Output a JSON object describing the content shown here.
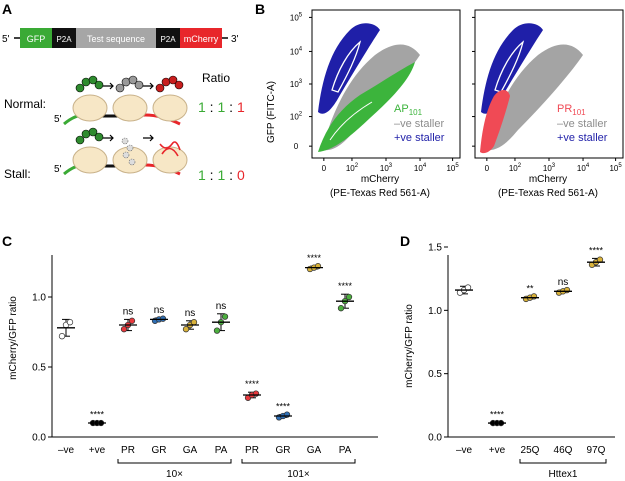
{
  "panel_labels": {
    "a": "A",
    "b": "B",
    "c": "C",
    "d": "D"
  },
  "panel_a": {
    "construct": {
      "five_prime": "5'",
      "three_prime": "3'",
      "gfp": "GFP",
      "p2a_left": "P2A",
      "test": "Test sequence",
      "p2a_right": "P2A",
      "mcherry": "mCherry"
    },
    "ratio_header": "Ratio",
    "normal": {
      "label": "Normal:",
      "five": "5'",
      "r1": "1",
      "sep1": " : ",
      "r2": "1",
      "sep2": " : ",
      "r3": "1"
    },
    "stall": {
      "label": "Stall:",
      "five": "5'",
      "r1": "1",
      "sep1": " : ",
      "r2": "1",
      "sep2": " : ",
      "r3": "0"
    },
    "colors": {
      "gfp": "#3aaa35",
      "p2a": "#111111",
      "test": "#a6a6a6",
      "mcherry": "#e8262b",
      "ribosome": "#f7e7c6"
    }
  },
  "panel_b": {
    "ylabel": "GFP (FITC-A)",
    "xlabel_line1": "mCherry",
    "xlabel_line2": "(PE-Texas Red 561-A)",
    "x_ticks": [
      "0",
      "10",
      "10",
      "10",
      "10"
    ],
    "x_exps": [
      "",
      "2",
      "3",
      "4",
      "5"
    ],
    "y_ticks": [
      "0",
      "10",
      "10",
      "10",
      "10"
    ],
    "y_exps": [
      "",
      "2",
      "3",
      "4",
      "5"
    ],
    "left_legend": {
      "main": "AP",
      "sub": "101",
      "neg": "–ve staller",
      "pos": "+ve staller"
    },
    "right_legend": {
      "main": "PR",
      "sub": "101",
      "neg": "–ve staller",
      "pos": "+ve staller"
    },
    "colors": {
      "pos": "#1f1fa8",
      "neg": "#8c8c8c",
      "ap": "#3cb43c",
      "pr": "#f04a55"
    }
  },
  "chart_data": [
    {
      "type": "scatter",
      "title": "",
      "ylabel": "mCherry/GFP ratio",
      "ylim": [
        0,
        1.3
      ],
      "y_ticks": [
        "0.0",
        "0.5",
        "1.0"
      ],
      "categories": [
        "–ve",
        "+ve",
        "PR",
        "GR",
        "GA",
        "PA",
        "PR",
        "GR",
        "GA",
        "PA"
      ],
      "groups": [
        {
          "label": "10×",
          "categories": [
            "PR",
            "GR",
            "GA",
            "PA"
          ]
        },
        {
          "label": "101×",
          "categories": [
            "PR",
            "GR",
            "GA",
            "PA"
          ]
        }
      ],
      "series": [
        {
          "name": "–ve",
          "mean": 0.78,
          "sd": 0.06,
          "points": [
            0.72,
            0.8,
            0.82
          ],
          "color": "#ffffff",
          "sig": ""
        },
        {
          "name": "+ve",
          "mean": 0.1,
          "sd": 0.005,
          "points": [
            0.1,
            0.1,
            0.1
          ],
          "color": "#000000",
          "sig": "****"
        },
        {
          "name": "PR 10×",
          "mean": 0.8,
          "sd": 0.04,
          "points": [
            0.77,
            0.8,
            0.83
          ],
          "color": "#e8383d",
          "sig": "ns"
        },
        {
          "name": "GR 10×",
          "mean": 0.84,
          "sd": 0.01,
          "points": [
            0.83,
            0.84,
            0.845
          ],
          "color": "#2f6fb5",
          "sig": "ns"
        },
        {
          "name": "GA 10×",
          "mean": 0.8,
          "sd": 0.03,
          "points": [
            0.77,
            0.8,
            0.82
          ],
          "color": "#d9b23a",
          "sig": "ns"
        },
        {
          "name": "PA 10×",
          "mean": 0.82,
          "sd": 0.06,
          "points": [
            0.76,
            0.82,
            0.86
          ],
          "color": "#4caf3e",
          "sig": "ns"
        },
        {
          "name": "PR 101×",
          "mean": 0.3,
          "sd": 0.02,
          "points": [
            0.28,
            0.3,
            0.31
          ],
          "color": "#e8383d",
          "sig": "****"
        },
        {
          "name": "GR 101×",
          "mean": 0.15,
          "sd": 0.01,
          "points": [
            0.14,
            0.15,
            0.16
          ],
          "color": "#2f6fb5",
          "sig": "****"
        },
        {
          "name": "GA 101×",
          "mean": 1.21,
          "sd": 0.01,
          "points": [
            1.2,
            1.21,
            1.22
          ],
          "color": "#d9b23a",
          "sig": "****"
        },
        {
          "name": "PA 101×",
          "mean": 0.97,
          "sd": 0.05,
          "points": [
            0.92,
            0.97,
            1.0
          ],
          "color": "#4caf3e",
          "sig": "****"
        }
      ]
    },
    {
      "type": "scatter",
      "title": "",
      "ylabel": "mCherry/GFP ratio",
      "ylim": [
        0,
        1.5
      ],
      "y_ticks": [
        "0.0",
        "0.5",
        "1.0",
        "1.5"
      ],
      "categories": [
        "–ve",
        "+ve",
        "25Q",
        "46Q",
        "97Q"
      ],
      "groups": [
        {
          "label": "Httex1",
          "categories": [
            "25Q",
            "46Q",
            "97Q"
          ]
        }
      ],
      "series": [
        {
          "name": "–ve",
          "mean": 1.16,
          "sd": 0.03,
          "points": [
            1.14,
            1.16,
            1.18
          ],
          "color": "#ffffff",
          "sig": ""
        },
        {
          "name": "+ve",
          "mean": 0.11,
          "sd": 0.005,
          "points": [
            0.11,
            0.11,
            0.11
          ],
          "color": "#000000",
          "sig": "****"
        },
        {
          "name": "25Q",
          "mean": 1.1,
          "sd": 0.01,
          "points": [
            1.09,
            1.1,
            1.11
          ],
          "color": "#d9b23a",
          "sig": "**"
        },
        {
          "name": "46Q",
          "mean": 1.15,
          "sd": 0.01,
          "points": [
            1.14,
            1.15,
            1.16
          ],
          "color": "#d9b23a",
          "sig": "ns"
        },
        {
          "name": "97Q",
          "mean": 1.38,
          "sd": 0.03,
          "points": [
            1.36,
            1.38,
            1.4
          ],
          "color": "#d9b23a",
          "sig": "****"
        }
      ]
    }
  ]
}
